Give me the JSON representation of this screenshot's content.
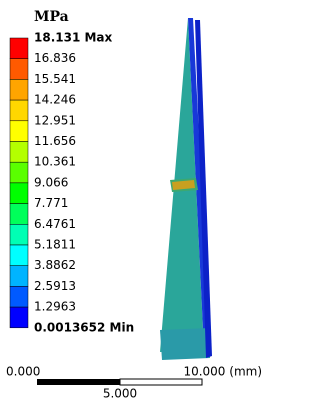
{
  "legend": {
    "unit": "MPa",
    "labels": [
      "18.131 Max",
      "16.836",
      "15.541",
      "14.246",
      "12.951",
      "11.656",
      "10.361",
      "9.066",
      "7.771",
      "6.4761",
      "5.1811",
      "3.8862",
      "2.5913",
      "1.2963",
      "0.0013652 Min"
    ]
  },
  "scale": {
    "left": "0.000",
    "right": "10.000 (mm)",
    "middle": "5.000"
  }
}
